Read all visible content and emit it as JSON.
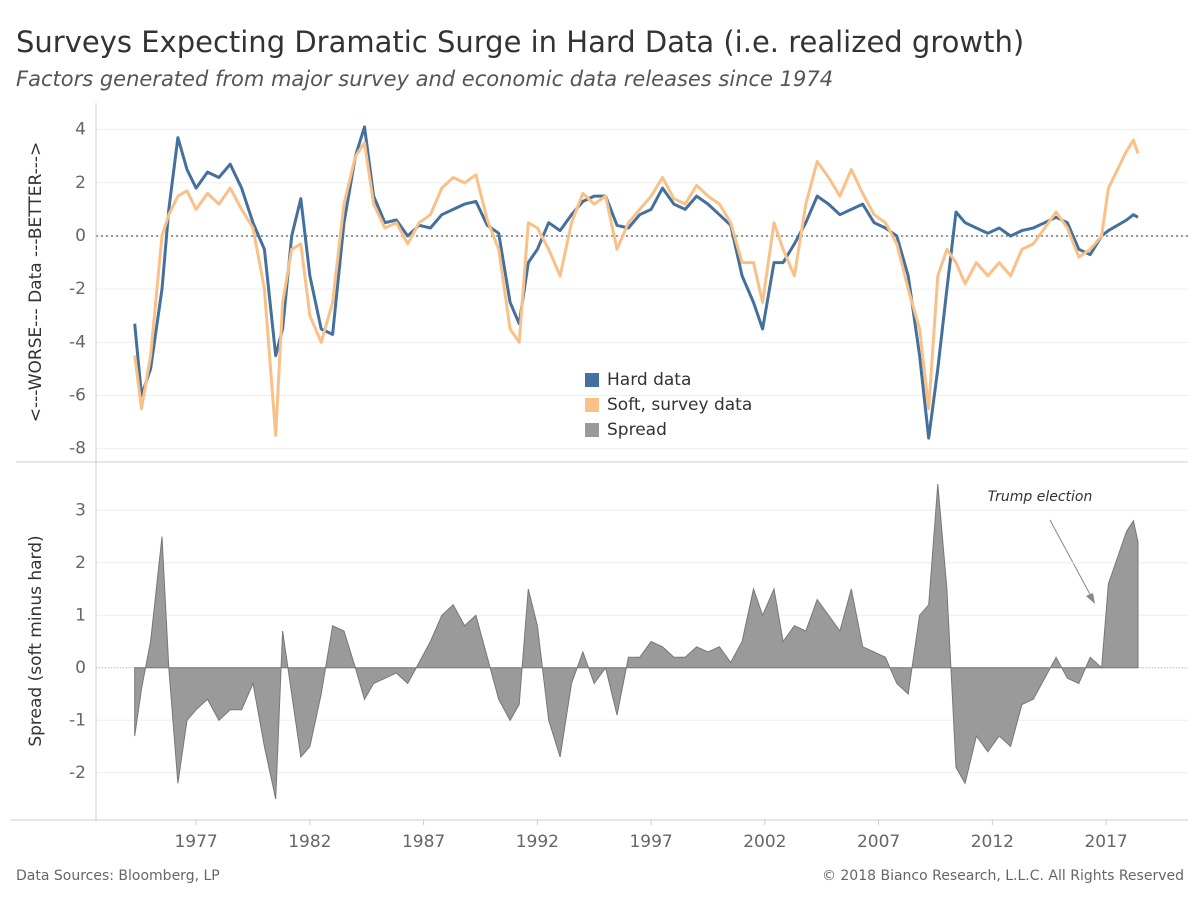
{
  "chart_data": [
    {
      "type": "line",
      "title": "Surveys Expecting Dramatic Surge in Hard Data (i.e. realized growth)",
      "subtitle": "Factors generated from major survey and economic data releases since 1974",
      "ylabel": "<---WORSE--- Data ---BETTER--->",
      "xlim": [
        1972.6,
        2020.6
      ],
      "ylim": [
        -8.5,
        5
      ],
      "yticks": [
        -8,
        -6,
        -4,
        -2,
        0,
        2,
        4
      ],
      "grid": true,
      "x": [
        1974.3,
        1974.6,
        1975.0,
        1975.5,
        1975.8,
        1976.2,
        1976.6,
        1977.0,
        1977.5,
        1978.0,
        1978.5,
        1979.0,
        1979.5,
        1980.0,
        1980.5,
        1980.8,
        1981.2,
        1981.6,
        1982.0,
        1982.5,
        1983.0,
        1983.5,
        1984.0,
        1984.4,
        1984.8,
        1985.3,
        1985.8,
        1986.3,
        1986.8,
        1987.3,
        1987.8,
        1988.3,
        1988.8,
        1989.3,
        1989.8,
        1990.3,
        1990.8,
        1991.2,
        1991.6,
        1992.0,
        1992.5,
        1993.0,
        1993.5,
        1994.0,
        1994.5,
        1995.0,
        1995.5,
        1996.0,
        1996.5,
        1997.0,
        1997.5,
        1998.0,
        1998.5,
        1999.0,
        1999.5,
        2000.0,
        2000.5,
        2001.0,
        2001.5,
        2001.9,
        2002.4,
        2002.8,
        2003.3,
        2003.8,
        2004.3,
        2004.8,
        2005.3,
        2005.8,
        2006.3,
        2006.8,
        2007.3,
        2007.8,
        2008.3,
        2008.8,
        2009.2,
        2009.6,
        2010.0,
        2010.4,
        2010.8,
        2011.3,
        2011.8,
        2012.3,
        2012.8,
        2013.3,
        2013.8,
        2014.3,
        2014.8,
        2015.3,
        2015.8,
        2016.3,
        2016.8,
        2017.1,
        2017.5,
        2017.9,
        2018.2,
        2018.4
      ],
      "series": [
        {
          "name": "Hard data",
          "color": "#44709d",
          "values": [
            -3.3,
            -6.0,
            -5.0,
            -2.0,
            1.0,
            3.7,
            2.5,
            1.8,
            2.4,
            2.2,
            2.7,
            1.8,
            0.5,
            -0.5,
            -4.5,
            -3.5,
            0.0,
            1.4,
            -1.5,
            -3.5,
            -3.7,
            0.5,
            3.0,
            4.1,
            1.5,
            0.5,
            0.6,
            0.0,
            0.4,
            0.3,
            0.8,
            1.0,
            1.2,
            1.3,
            0.4,
            0.1,
            -2.5,
            -3.3,
            -1.0,
            -0.5,
            0.5,
            0.2,
            0.8,
            1.3,
            1.5,
            1.5,
            0.4,
            0.3,
            0.8,
            1.0,
            1.8,
            1.2,
            1.0,
            1.5,
            1.2,
            0.8,
            0.4,
            -1.5,
            -2.5,
            -3.5,
            -1.0,
            -1.0,
            -0.3,
            0.5,
            1.5,
            1.2,
            0.8,
            1.0,
            1.2,
            0.5,
            0.3,
            0.0,
            -1.5,
            -4.5,
            -7.6,
            -5.0,
            -2.0,
            0.9,
            0.5,
            0.3,
            0.1,
            0.3,
            0.0,
            0.2,
            0.3,
            0.5,
            0.7,
            0.5,
            -0.5,
            -0.7,
            0.0,
            0.2,
            0.4,
            0.6,
            0.8,
            0.7
          ]
        },
        {
          "name": "Soft, survey data",
          "color": "#f9c188",
          "values": [
            -4.5,
            -6.5,
            -4.5,
            0.0,
            0.8,
            1.5,
            1.7,
            1.0,
            1.6,
            1.2,
            1.8,
            1.0,
            0.3,
            -2.0,
            -7.5,
            -2.5,
            -0.5,
            -0.3,
            -3.0,
            -4.0,
            -2.5,
            1.2,
            3.0,
            3.5,
            1.2,
            0.3,
            0.5,
            -0.3,
            0.5,
            0.8,
            1.8,
            2.2,
            2.0,
            2.3,
            0.6,
            -0.5,
            -3.5,
            -4.0,
            0.5,
            0.3,
            -0.5,
            -1.5,
            0.5,
            1.6,
            1.2,
            1.5,
            -0.5,
            0.5,
            1.0,
            1.5,
            2.2,
            1.4,
            1.2,
            1.9,
            1.5,
            1.2,
            0.5,
            -1.0,
            -1.0,
            -2.5,
            0.5,
            -0.5,
            -1.5,
            1.2,
            2.8,
            2.2,
            1.5,
            2.5,
            1.6,
            0.8,
            0.5,
            -0.3,
            -2.0,
            -3.5,
            -6.5,
            -1.5,
            -0.5,
            -1.0,
            -1.8,
            -1.0,
            -1.5,
            -1.0,
            -1.5,
            -0.5,
            -0.3,
            0.3,
            0.9,
            0.3,
            -0.8,
            -0.5,
            0.0,
            1.8,
            2.5,
            3.2,
            3.6,
            3.1
          ]
        }
      ]
    },
    {
      "type": "area",
      "ylabel": "Spread (soft minus hard)",
      "annotation": "Trump election",
      "xlim": [
        1972.6,
        2020.6
      ],
      "ylim": [
        -2.9,
        3.9
      ],
      "yticks": [
        -2,
        -1,
        0,
        1,
        2,
        3
      ],
      "xticks": [
        1977,
        1982,
        1987,
        1992,
        1997,
        2002,
        2007,
        2012,
        2017
      ],
      "grid": true,
      "x": [
        1974.3,
        1974.6,
        1975.0,
        1975.5,
        1975.8,
        1976.2,
        1976.6,
        1977.0,
        1977.5,
        1978.0,
        1978.5,
        1979.0,
        1979.5,
        1980.0,
        1980.5,
        1980.8,
        1981.2,
        1981.6,
        1982.0,
        1982.5,
        1983.0,
        1983.5,
        1984.0,
        1984.4,
        1984.8,
        1985.3,
        1985.8,
        1986.3,
        1986.8,
        1987.3,
        1987.8,
        1988.3,
        1988.8,
        1989.3,
        1989.8,
        1990.3,
        1990.8,
        1991.2,
        1991.6,
        1992.0,
        1992.5,
        1993.0,
        1993.5,
        1994.0,
        1994.5,
        1995.0,
        1995.5,
        1996.0,
        1996.5,
        1997.0,
        1997.5,
        1998.0,
        1998.5,
        1999.0,
        1999.5,
        2000.0,
        2000.5,
        2001.0,
        2001.5,
        2001.9,
        2002.4,
        2002.8,
        2003.3,
        2003.8,
        2004.3,
        2004.8,
        2005.3,
        2005.8,
        2006.3,
        2006.8,
        2007.3,
        2007.8,
        2008.3,
        2008.8,
        2009.2,
        2009.6,
        2010.0,
        2010.4,
        2010.8,
        2011.3,
        2011.8,
        2012.3,
        2012.8,
        2013.3,
        2013.8,
        2014.3,
        2014.8,
        2015.3,
        2015.8,
        2016.3,
        2016.8,
        2017.1,
        2017.5,
        2017.9,
        2018.2,
        2018.4
      ],
      "series": [
        {
          "name": "Spread",
          "color": "#9a9a9a",
          "values": [
            -1.3,
            -0.4,
            0.5,
            2.5,
            0,
            -2.2,
            -1.0,
            -0.8,
            -0.6,
            -1.0,
            -0.8,
            -0.8,
            -0.3,
            -1.5,
            -2.5,
            0.7,
            -0.5,
            -1.7,
            -1.5,
            -0.5,
            0.8,
            0.7,
            0.0,
            -0.6,
            -0.3,
            -0.2,
            -0.1,
            -0.3,
            0.1,
            0.5,
            1.0,
            1.2,
            0.8,
            1.0,
            0.2,
            -0.6,
            -1.0,
            -0.7,
            1.5,
            0.8,
            -1.0,
            -1.7,
            -0.3,
            0.3,
            -0.3,
            0.0,
            -0.9,
            0.2,
            0.2,
            0.5,
            0.4,
            0.2,
            0.2,
            0.4,
            0.3,
            0.4,
            0.1,
            0.5,
            1.5,
            1.0,
            1.5,
            0.5,
            0.8,
            0.7,
            1.3,
            1.0,
            0.7,
            1.5,
            0.4,
            0.3,
            0.2,
            -0.3,
            -0.5,
            1.0,
            1.2,
            3.5,
            1.5,
            -1.9,
            -2.2,
            -1.3,
            -1.6,
            -1.3,
            -1.5,
            -0.7,
            -0.6,
            -0.2,
            0.2,
            -0.2,
            -0.3,
            0.2,
            0.0,
            1.6,
            2.1,
            2.6,
            2.8,
            2.4
          ]
        }
      ]
    }
  ],
  "footer": {
    "source": "Data Sources: Bloomberg, LP",
    "copyright": "© 2018 Bianco Research, L.L.C. All Rights Reserved"
  }
}
